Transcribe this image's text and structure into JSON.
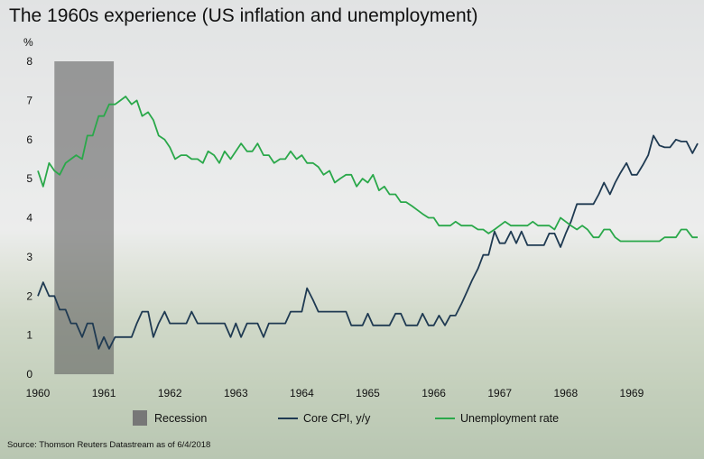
{
  "chart_data": {
    "type": "line",
    "title": "The 1960s experience (US inflation and unemployment)",
    "ylabel": "%",
    "xlabel": "",
    "ylim": [
      0,
      8
    ],
    "xlim": [
      1960,
      1970
    ],
    "y_ticks": [
      "0",
      "1",
      "2",
      "3",
      "4",
      "5",
      "6",
      "7",
      "8"
    ],
    "x_ticks": [
      "1960",
      "1961",
      "1962",
      "1963",
      "1964",
      "1965",
      "1966",
      "1967",
      "1968",
      "1969"
    ],
    "recession": {
      "name": "Recession",
      "start": 1960.25,
      "end": 1961.15
    },
    "series": [
      {
        "name": "Core CPI, y/y",
        "color": "#1f3a52",
        "points": [
          [
            1960.0,
            2.0
          ],
          [
            1960.08,
            2.35
          ],
          [
            1960.17,
            2.0
          ],
          [
            1960.25,
            2.0
          ],
          [
            1960.33,
            1.65
          ],
          [
            1960.42,
            1.65
          ],
          [
            1960.5,
            1.3
          ],
          [
            1960.58,
            1.3
          ],
          [
            1960.67,
            0.95
          ],
          [
            1960.75,
            1.3
          ],
          [
            1960.83,
            1.3
          ],
          [
            1960.92,
            0.65
          ],
          [
            1961.0,
            0.95
          ],
          [
            1961.08,
            0.65
          ],
          [
            1961.17,
            0.95
          ],
          [
            1961.25,
            0.95
          ],
          [
            1961.33,
            0.95
          ],
          [
            1961.42,
            0.95
          ],
          [
            1961.5,
            1.3
          ],
          [
            1961.58,
            1.6
          ],
          [
            1961.67,
            1.6
          ],
          [
            1961.75,
            0.95
          ],
          [
            1961.83,
            1.3
          ],
          [
            1961.92,
            1.6
          ],
          [
            1962.0,
            1.3
          ],
          [
            1962.08,
            1.3
          ],
          [
            1962.17,
            1.3
          ],
          [
            1962.25,
            1.3
          ],
          [
            1962.33,
            1.6
          ],
          [
            1962.42,
            1.3
          ],
          [
            1962.5,
            1.3
          ],
          [
            1962.58,
            1.3
          ],
          [
            1962.67,
            1.3
          ],
          [
            1962.75,
            1.3
          ],
          [
            1962.83,
            1.3
          ],
          [
            1962.92,
            0.95
          ],
          [
            1963.0,
            1.3
          ],
          [
            1963.08,
            0.95
          ],
          [
            1963.17,
            1.3
          ],
          [
            1963.25,
            1.3
          ],
          [
            1963.33,
            1.3
          ],
          [
            1963.42,
            0.95
          ],
          [
            1963.5,
            1.3
          ],
          [
            1963.58,
            1.3
          ],
          [
            1963.67,
            1.3
          ],
          [
            1963.75,
            1.3
          ],
          [
            1963.83,
            1.6
          ],
          [
            1963.92,
            1.6
          ],
          [
            1964.0,
            1.6
          ],
          [
            1964.08,
            2.2
          ],
          [
            1964.17,
            1.9
          ],
          [
            1964.25,
            1.6
          ],
          [
            1964.33,
            1.6
          ],
          [
            1964.42,
            1.6
          ],
          [
            1964.5,
            1.6
          ],
          [
            1964.58,
            1.6
          ],
          [
            1964.67,
            1.6
          ],
          [
            1964.75,
            1.25
          ],
          [
            1964.83,
            1.25
          ],
          [
            1964.92,
            1.25
          ],
          [
            1965.0,
            1.55
          ],
          [
            1965.08,
            1.25
          ],
          [
            1965.17,
            1.25
          ],
          [
            1965.25,
            1.25
          ],
          [
            1965.33,
            1.25
          ],
          [
            1965.42,
            1.55
          ],
          [
            1965.5,
            1.55
          ],
          [
            1965.58,
            1.25
          ],
          [
            1965.67,
            1.25
          ],
          [
            1965.75,
            1.25
          ],
          [
            1965.83,
            1.55
          ],
          [
            1965.92,
            1.25
          ],
          [
            1966.0,
            1.25
          ],
          [
            1966.08,
            1.5
          ],
          [
            1966.17,
            1.25
          ],
          [
            1966.25,
            1.5
          ],
          [
            1966.33,
            1.5
          ],
          [
            1966.42,
            1.8
          ],
          [
            1966.5,
            2.1
          ],
          [
            1966.58,
            2.4
          ],
          [
            1966.67,
            2.7
          ],
          [
            1966.75,
            3.05
          ],
          [
            1966.83,
            3.05
          ],
          [
            1966.92,
            3.65
          ],
          [
            1967.0,
            3.35
          ],
          [
            1967.08,
            3.35
          ],
          [
            1967.17,
            3.65
          ],
          [
            1967.25,
            3.35
          ],
          [
            1967.33,
            3.65
          ],
          [
            1967.42,
            3.3
          ],
          [
            1967.5,
            3.3
          ],
          [
            1967.58,
            3.3
          ],
          [
            1967.67,
            3.3
          ],
          [
            1967.75,
            3.6
          ],
          [
            1967.83,
            3.6
          ],
          [
            1967.92,
            3.25
          ],
          [
            1968.0,
            3.6
          ],
          [
            1968.08,
            3.9
          ],
          [
            1968.17,
            4.35
          ],
          [
            1968.25,
            4.35
          ],
          [
            1968.33,
            4.35
          ],
          [
            1968.42,
            4.35
          ],
          [
            1968.5,
            4.6
          ],
          [
            1968.58,
            4.9
          ],
          [
            1968.67,
            4.6
          ],
          [
            1968.75,
            4.9
          ],
          [
            1968.83,
            5.15
          ],
          [
            1968.92,
            5.4
          ],
          [
            1969.0,
            5.1
          ],
          [
            1969.08,
            5.1
          ],
          [
            1969.17,
            5.35
          ],
          [
            1969.25,
            5.6
          ],
          [
            1969.33,
            6.1
          ],
          [
            1969.42,
            5.85
          ],
          [
            1969.5,
            5.8
          ],
          [
            1969.58,
            5.8
          ],
          [
            1969.67,
            6.0
          ],
          [
            1969.75,
            5.95
          ],
          [
            1969.83,
            5.95
          ],
          [
            1969.92,
            5.65
          ],
          [
            1970.0,
            5.9
          ]
        ]
      },
      {
        "name": "Unemployment rate",
        "color": "#2aa84a",
        "points": [
          [
            1960.0,
            5.2
          ],
          [
            1960.08,
            4.8
          ],
          [
            1960.17,
            5.4
          ],
          [
            1960.25,
            5.2
          ],
          [
            1960.33,
            5.1
          ],
          [
            1960.42,
            5.4
          ],
          [
            1960.5,
            5.5
          ],
          [
            1960.58,
            5.6
          ],
          [
            1960.67,
            5.5
          ],
          [
            1960.75,
            6.1
          ],
          [
            1960.83,
            6.1
          ],
          [
            1960.92,
            6.6
          ],
          [
            1961.0,
            6.6
          ],
          [
            1961.08,
            6.9
          ],
          [
            1961.17,
            6.9
          ],
          [
            1961.25,
            7.0
          ],
          [
            1961.33,
            7.1
          ],
          [
            1961.42,
            6.9
          ],
          [
            1961.5,
            7.0
          ],
          [
            1961.58,
            6.6
          ],
          [
            1961.67,
            6.7
          ],
          [
            1961.75,
            6.5
          ],
          [
            1961.83,
            6.1
          ],
          [
            1961.92,
            6.0
          ],
          [
            1962.0,
            5.8
          ],
          [
            1962.08,
            5.5
          ],
          [
            1962.17,
            5.6
          ],
          [
            1962.25,
            5.6
          ],
          [
            1962.33,
            5.5
          ],
          [
            1962.42,
            5.5
          ],
          [
            1962.5,
            5.4
          ],
          [
            1962.58,
            5.7
          ],
          [
            1962.67,
            5.6
          ],
          [
            1962.75,
            5.4
          ],
          [
            1962.83,
            5.7
          ],
          [
            1962.92,
            5.5
          ],
          [
            1963.0,
            5.7
          ],
          [
            1963.08,
            5.9
          ],
          [
            1963.17,
            5.7
          ],
          [
            1963.25,
            5.7
          ],
          [
            1963.33,
            5.9
          ],
          [
            1963.42,
            5.6
          ],
          [
            1963.5,
            5.6
          ],
          [
            1963.58,
            5.4
          ],
          [
            1963.67,
            5.5
          ],
          [
            1963.75,
            5.5
          ],
          [
            1963.83,
            5.7
          ],
          [
            1963.92,
            5.5
          ],
          [
            1964.0,
            5.6
          ],
          [
            1964.08,
            5.4
          ],
          [
            1964.17,
            5.4
          ],
          [
            1964.25,
            5.3
          ],
          [
            1964.33,
            5.1
          ],
          [
            1964.42,
            5.2
          ],
          [
            1964.5,
            4.9
          ],
          [
            1964.58,
            5.0
          ],
          [
            1964.67,
            5.1
          ],
          [
            1964.75,
            5.1
          ],
          [
            1964.83,
            4.8
          ],
          [
            1964.92,
            5.0
          ],
          [
            1965.0,
            4.9
          ],
          [
            1965.08,
            5.1
          ],
          [
            1965.17,
            4.7
          ],
          [
            1965.25,
            4.8
          ],
          [
            1965.33,
            4.6
          ],
          [
            1965.42,
            4.6
          ],
          [
            1965.5,
            4.4
          ],
          [
            1965.58,
            4.4
          ],
          [
            1965.67,
            4.3
          ],
          [
            1965.75,
            4.2
          ],
          [
            1965.83,
            4.1
          ],
          [
            1965.92,
            4.0
          ],
          [
            1966.0,
            4.0
          ],
          [
            1966.08,
            3.8
          ],
          [
            1966.17,
            3.8
          ],
          [
            1966.25,
            3.8
          ],
          [
            1966.33,
            3.9
          ],
          [
            1966.42,
            3.8
          ],
          [
            1966.5,
            3.8
          ],
          [
            1966.58,
            3.8
          ],
          [
            1966.67,
            3.7
          ],
          [
            1966.75,
            3.7
          ],
          [
            1966.83,
            3.6
          ],
          [
            1966.92,
            3.7
          ],
          [
            1967.0,
            3.8
          ],
          [
            1967.08,
            3.9
          ],
          [
            1967.17,
            3.8
          ],
          [
            1967.25,
            3.8
          ],
          [
            1967.33,
            3.8
          ],
          [
            1967.42,
            3.8
          ],
          [
            1967.5,
            3.9
          ],
          [
            1967.58,
            3.8
          ],
          [
            1967.67,
            3.8
          ],
          [
            1967.75,
            3.8
          ],
          [
            1967.83,
            3.7
          ],
          [
            1967.92,
            4.0
          ],
          [
            1968.0,
            3.9
          ],
          [
            1968.08,
            3.8
          ],
          [
            1968.17,
            3.7
          ],
          [
            1968.25,
            3.8
          ],
          [
            1968.33,
            3.7
          ],
          [
            1968.42,
            3.5
          ],
          [
            1968.5,
            3.5
          ],
          [
            1968.58,
            3.7
          ],
          [
            1968.67,
            3.7
          ],
          [
            1968.75,
            3.5
          ],
          [
            1968.83,
            3.4
          ],
          [
            1968.92,
            3.4
          ],
          [
            1969.0,
            3.4
          ],
          [
            1969.08,
            3.4
          ],
          [
            1969.17,
            3.4
          ],
          [
            1969.25,
            3.4
          ],
          [
            1969.33,
            3.4
          ],
          [
            1969.42,
            3.4
          ],
          [
            1969.5,
            3.5
          ],
          [
            1969.58,
            3.5
          ],
          [
            1969.67,
            3.5
          ],
          [
            1969.75,
            3.7
          ],
          [
            1969.83,
            3.7
          ],
          [
            1969.92,
            3.5
          ],
          [
            1970.0,
            3.5
          ]
        ]
      }
    ],
    "source": "Source: Thomson Reuters Datastream as of 6/4/2018"
  }
}
